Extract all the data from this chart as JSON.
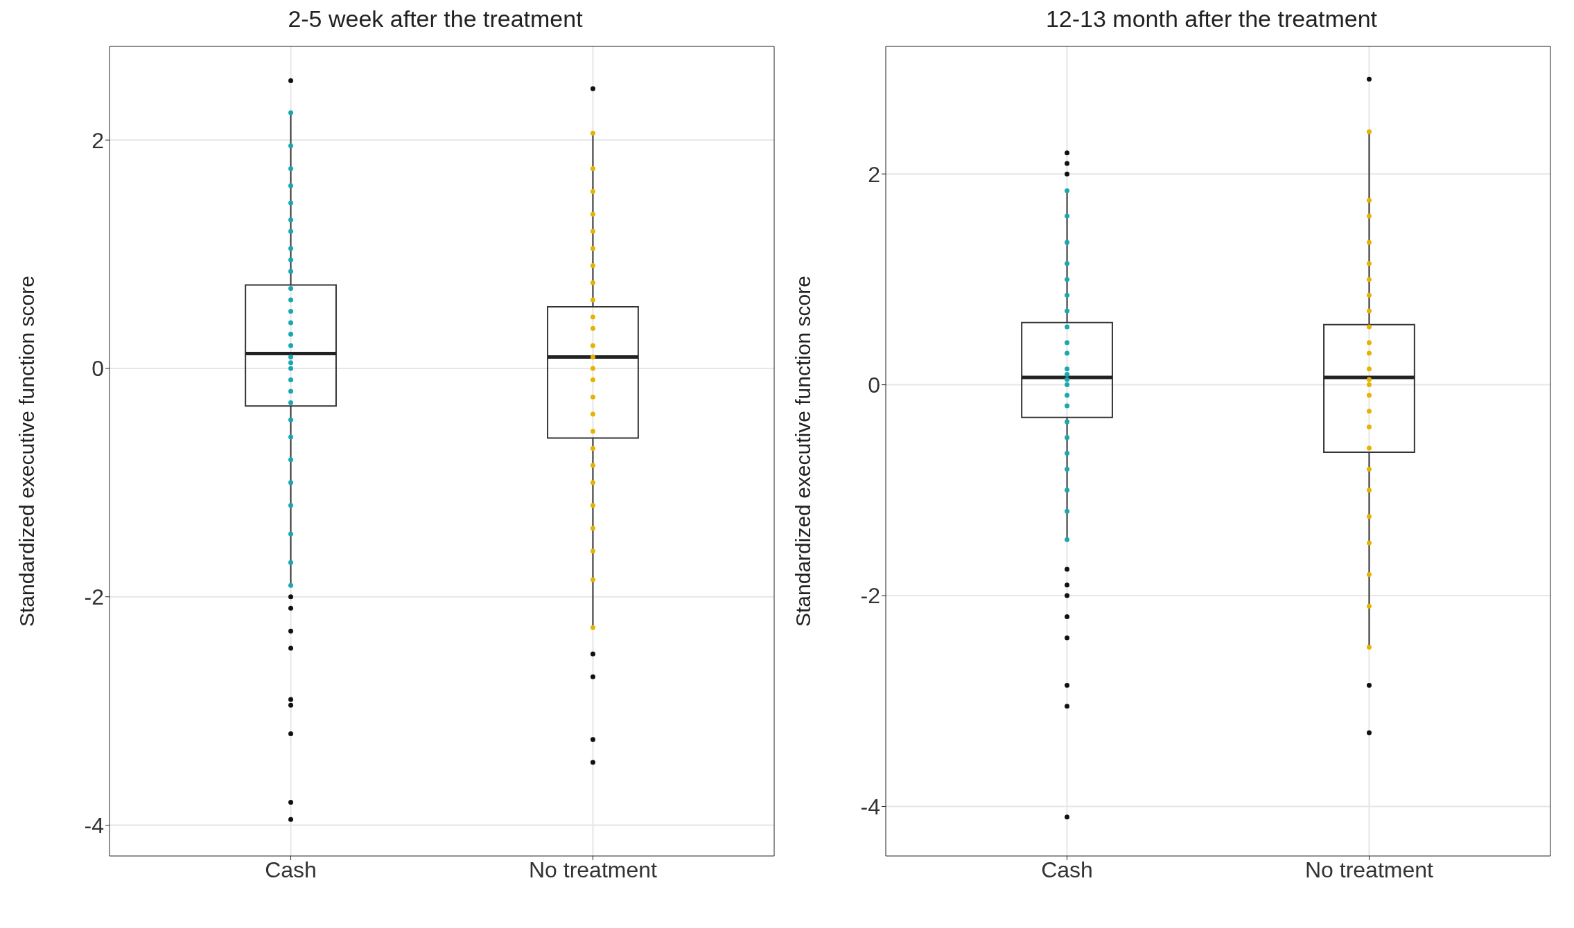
{
  "chart_data": [
    {
      "type": "box",
      "title": "2-5 week after the treatment",
      "ylabel": "Standardized executive function score",
      "categories": [
        "Cash",
        "No treatment"
      ],
      "ylim": [
        -4.27,
        2.82
      ],
      "yticks": [
        -4,
        -2,
        0,
        2
      ],
      "grid": true,
      "boxes": [
        {
          "low": -1.9,
          "q1": -0.33,
          "median": 0.13,
          "q3": 0.73,
          "high": 2.24,
          "outliers": [
            2.52,
            -2.0,
            -2.1,
            -2.3,
            -2.45,
            -2.9,
            -2.95,
            -3.2,
            -3.8,
            -3.95
          ]
        },
        {
          "low": -2.27,
          "q1": -0.61,
          "median": 0.1,
          "q3": 0.54,
          "high": 2.06,
          "outliers": [
            2.45,
            -2.5,
            -2.7,
            -3.25,
            -3.45
          ]
        }
      ],
      "series": [
        {
          "type": "scatter",
          "color": "#1aa7b0",
          "x": [
            "Cash",
            "Cash",
            "Cash",
            "Cash",
            "Cash",
            "Cash",
            "Cash",
            "Cash",
            "Cash",
            "Cash",
            "Cash",
            "Cash",
            "Cash",
            "Cash",
            "Cash",
            "Cash",
            "Cash",
            "Cash",
            "Cash",
            "Cash",
            "Cash",
            "Cash",
            "Cash",
            "Cash",
            "Cash",
            "Cash",
            "Cash",
            "Cash",
            "Cash",
            "Cash"
          ],
          "values": [
            2.24,
            1.95,
            1.75,
            1.6,
            1.45,
            1.3,
            1.2,
            1.05,
            0.95,
            0.85,
            0.7,
            0.6,
            0.5,
            0.4,
            0.3,
            0.2,
            0.1,
            0.05,
            0,
            -0.1,
            -0.2,
            -0.3,
            -0.45,
            -0.6,
            -0.8,
            -1,
            -1.2,
            -1.45,
            -1.7,
            -1.9
          ]
        },
        {
          "type": "scatter",
          "color": "#e6b400",
          "x": [
            "No treatment",
            "No treatment",
            "No treatment",
            "No treatment",
            "No treatment",
            "No treatment",
            "No treatment",
            "No treatment",
            "No treatment",
            "No treatment",
            "No treatment",
            "No treatment",
            "No treatment",
            "No treatment",
            "No treatment",
            "No treatment",
            "No treatment",
            "No treatment",
            "No treatment",
            "No treatment",
            "No treatment",
            "No treatment",
            "No treatment",
            "No treatment",
            "No treatment",
            "No treatment"
          ],
          "values": [
            2.06,
            1.75,
            1.55,
            1.35,
            1.2,
            1.05,
            0.9,
            0.75,
            0.6,
            0.45,
            0.35,
            0.2,
            0.1,
            0,
            -0.1,
            -0.25,
            -0.4,
            -0.55,
            -0.7,
            -0.85,
            -1,
            -1.2,
            -1.4,
            -1.6,
            -1.85,
            -2.27
          ]
        }
      ]
    },
    {
      "type": "box",
      "title": "12-13 month after the treatment",
      "ylabel": "Standardized executive function score",
      "categories": [
        "Cash",
        "No treatment"
      ],
      "ylim": [
        -4.47,
        3.21
      ],
      "yticks": [
        -4,
        -2,
        0,
        2
      ],
      "grid": true,
      "boxes": [
        {
          "low": -1.47,
          "q1": -0.31,
          "median": 0.07,
          "q3": 0.59,
          "high": 1.84,
          "outliers": [
            2.0,
            2.1,
            2.2,
            -1.75,
            -1.9,
            -2.0,
            -2.2,
            -2.4,
            -2.85,
            -3.05,
            -4.1
          ]
        },
        {
          "low": -2.49,
          "q1": -0.64,
          "median": 0.07,
          "q3": 0.57,
          "high": 2.4,
          "outliers": [
            2.9,
            -2.85,
            -3.3
          ]
        }
      ],
      "series": [
        {
          "type": "scatter",
          "color": "#1aa7b0",
          "x": [
            "Cash",
            "Cash",
            "Cash",
            "Cash",
            "Cash",
            "Cash",
            "Cash",
            "Cash",
            "Cash",
            "Cash",
            "Cash",
            "Cash",
            "Cash",
            "Cash",
            "Cash",
            "Cash",
            "Cash",
            "Cash",
            "Cash",
            "Cash",
            "Cash",
            "Cash",
            "Cash"
          ],
          "values": [
            1.84,
            1.6,
            1.35,
            1.15,
            1.0,
            0.85,
            0.7,
            0.55,
            0.4,
            0.3,
            0.15,
            0.1,
            0.05,
            0,
            -0.1,
            -0.2,
            -0.35,
            -0.5,
            -0.65,
            -0.8,
            -1,
            -1.2,
            -1.47
          ]
        },
        {
          "type": "scatter",
          "color": "#e6b400",
          "x": [
            "No treatment",
            "No treatment",
            "No treatment",
            "No treatment",
            "No treatment",
            "No treatment",
            "No treatment",
            "No treatment",
            "No treatment",
            "No treatment",
            "No treatment",
            "No treatment",
            "No treatment",
            "No treatment",
            "No treatment",
            "No treatment",
            "No treatment",
            "No treatment",
            "No treatment",
            "No treatment",
            "No treatment",
            "No treatment",
            "No treatment",
            "No treatment",
            "No treatment"
          ],
          "values": [
            2.4,
            1.75,
            1.6,
            1.35,
            1.15,
            1,
            0.85,
            0.7,
            0.55,
            0.4,
            0.3,
            0.15,
            0.05,
            0,
            -0.1,
            -0.25,
            -0.4,
            -0.6,
            -0.8,
            -1,
            -1.25,
            -1.5,
            -1.8,
            -2.1,
            -2.49
          ]
        }
      ]
    }
  ]
}
